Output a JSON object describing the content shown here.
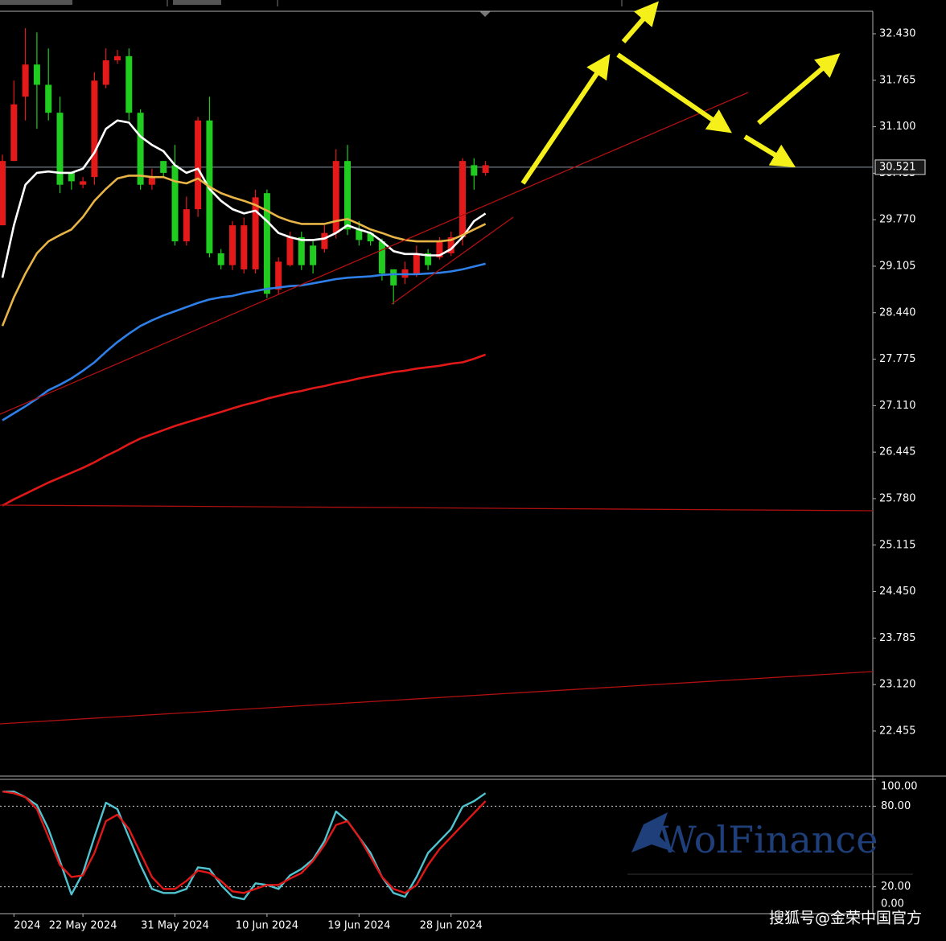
{
  "chart_data": [
    {
      "type": "candlestick",
      "categories": [
        null,
        "2024",
        null,
        null,
        null,
        null,
        null,
        "22 May 2024",
        null,
        null,
        null,
        null,
        null,
        null,
        null,
        "31 May 2024",
        null,
        null,
        null,
        null,
        null,
        null,
        null,
        "10 Jun 2024",
        null,
        null,
        null,
        null,
        null,
        null,
        null,
        "19 Jun 2024",
        null,
        null,
        null,
        null,
        null,
        null,
        null,
        "28 Jun 2024",
        null,
        null,
        null
      ],
      "open": [
        30.61,
        31.42,
        31.99,
        31.7,
        31.3,
        30.27,
        30.32,
        30.32,
        31.76,
        32.05,
        32.11,
        31.3,
        30.27,
        30.38,
        30.44,
        29.46,
        29.92,
        31.19,
        29.29,
        29.12,
        29.69,
        29.69,
        30.09,
        28.71,
        29.17,
        29.52,
        29.12,
        29.12,
        29.58,
        30.61,
        29.63,
        29.48,
        29.46,
        29.0,
        28.83,
        29.06,
        29.29,
        29.12,
        29.46,
        29.52,
        30.61,
        30.4,
        30.55
      ],
      "high": [
        30.7,
        31.76,
        32.51,
        32.45,
        32.22,
        31.53,
        30.44,
        30.38,
        31.88,
        32.22,
        32.2,
        32.22,
        31.35,
        30.5,
        30.61,
        30.84,
        30.1,
        31.24,
        31.53,
        29.35,
        29.75,
        29.8,
        30.2,
        30.2,
        29.23,
        29.6,
        29.6,
        29.46,
        29.69,
        30.78,
        30.84,
        29.75,
        29.6,
        29.5,
        29.06,
        29.17,
        29.4,
        29.35,
        29.52,
        29.6,
        30.65,
        30.65,
        30.61
      ],
      "low": [
        29.69,
        30.61,
        31.19,
        31.07,
        31.19,
        30.15,
        30.2,
        30.22,
        30.27,
        31.65,
        32.0,
        31.19,
        30.2,
        30.2,
        30.38,
        29.4,
        29.4,
        29.81,
        29.23,
        29.06,
        29.05,
        29.0,
        29.0,
        28.65,
        28.7,
        29.1,
        29.05,
        29.0,
        29.3,
        29.5,
        29.55,
        29.4,
        29.4,
        28.9,
        28.56,
        28.85,
        28.95,
        29.05,
        29.2,
        29.25,
        29.4,
        30.2,
        30.4
      ],
      "close": [
        29.69,
        30.61,
        31.53,
        31.99,
        31.7,
        31.3,
        30.44,
        30.27,
        30.38,
        31.7,
        32.05,
        32.11,
        31.3,
        30.27,
        30.61,
        30.55,
        29.46,
        29.92,
        31.19,
        29.29,
        29.12,
        29.06,
        29.06,
        30.15,
        28.77,
        29.12,
        29.52,
        29.4,
        29.35,
        29.58,
        30.61,
        29.63,
        29.58,
        29.46,
        29.06,
        28.94,
        29.0,
        29.29,
        29.23,
        29.29,
        29.52,
        30.55,
        30.44
      ],
      "up_color": "#1fcc1f",
      "down_color": "#e41a1a",
      "series": [
        {
          "color": "#ffffff",
          "values": [
            28.94,
            29.69,
            30.27,
            30.44,
            30.46,
            30.44,
            30.44,
            30.5,
            30.73,
            31.07,
            31.19,
            31.16,
            30.96,
            30.84,
            30.75,
            30.55,
            30.44,
            30.5,
            30.21,
            30.04,
            29.92,
            29.86,
            29.9,
            29.75,
            29.58,
            29.52,
            29.48,
            29.48,
            29.5,
            29.58,
            29.69,
            29.63,
            29.58,
            29.46,
            29.32,
            29.28,
            29.28,
            29.26,
            29.26,
            29.35,
            29.52,
            29.75,
            29.86
          ]
        },
        {
          "color": "#e8b445",
          "values": [
            28.25,
            28.66,
            29.0,
            29.29,
            29.46,
            29.55,
            29.63,
            29.81,
            30.04,
            30.21,
            30.36,
            30.4,
            30.4,
            30.38,
            30.38,
            30.32,
            30.29,
            30.36,
            30.24,
            30.15,
            30.09,
            30.04,
            29.98,
            29.9,
            29.81,
            29.75,
            29.71,
            29.71,
            29.71,
            29.75,
            29.78,
            29.71,
            29.63,
            29.58,
            29.52,
            29.48,
            29.46,
            29.46,
            29.46,
            29.48,
            29.55,
            29.63,
            29.71
          ]
        },
        {
          "color": "#2f7fe8",
          "values": [
            26.9,
            27.0,
            27.1,
            27.21,
            27.33,
            27.41,
            27.5,
            27.61,
            27.73,
            27.88,
            28.02,
            28.14,
            28.25,
            28.33,
            28.4,
            28.46,
            28.52,
            28.58,
            28.63,
            28.66,
            28.68,
            28.72,
            28.75,
            28.78,
            28.8,
            28.82,
            28.83,
            28.86,
            28.89,
            28.92,
            28.94,
            28.95,
            28.96,
            28.98,
            28.99,
            28.99,
            28.99,
            29.0,
            29.01,
            29.03,
            29.06,
            29.1,
            29.14
          ]
        },
        {
          "color": "#e01818",
          "values": [
            25.68,
            25.77,
            25.85,
            25.93,
            26.01,
            26.08,
            26.15,
            26.22,
            26.3,
            26.39,
            26.47,
            26.56,
            26.64,
            26.7,
            26.76,
            26.82,
            26.87,
            26.92,
            26.97,
            27.02,
            27.07,
            27.12,
            27.16,
            27.21,
            27.25,
            27.29,
            27.32,
            27.36,
            27.39,
            27.43,
            27.46,
            27.5,
            27.53,
            27.56,
            27.59,
            27.61,
            27.64,
            27.66,
            27.68,
            27.71,
            27.73,
            27.78,
            27.84
          ]
        }
      ],
      "last_price": 30.521,
      "ylim": [
        21.81,
        32.752
      ],
      "yticks": [
        {
          "value": 32.43,
          "label": "32.430"
        },
        {
          "value": 31.765,
          "label": "31.765"
        },
        {
          "value": 31.1,
          "label": "31.100"
        },
        {
          "value": 30.435,
          "label": "30.435"
        },
        {
          "value": 29.77,
          "label": "29.770"
        },
        {
          "value": 29.105,
          "label": "29.105"
        },
        {
          "value": 28.44,
          "label": "28.440"
        },
        {
          "value": 27.775,
          "label": "27.775"
        },
        {
          "value": 27.11,
          "label": "27.110"
        },
        {
          "value": 26.445,
          "label": "26.445"
        },
        {
          "value": 25.78,
          "label": "25.780"
        },
        {
          "value": 25.115,
          "label": "25.115"
        },
        {
          "value": 24.45,
          "label": "24.450"
        },
        {
          "value": 23.785,
          "label": "23.785"
        },
        {
          "value": 23.12,
          "label": "23.120"
        },
        {
          "value": 22.455,
          "label": "22.455"
        }
      ]
    },
    {
      "type": "line",
      "ylim": [
        0,
        100
      ],
      "yticks": [
        {
          "value": 100,
          "label": "100.00"
        },
        {
          "value": 80,
          "label": "80.00"
        },
        {
          "value": 20,
          "label": "20.00"
        },
        {
          "value": 0,
          "label": "0.00"
        }
      ],
      "levels": [
        80,
        20
      ],
      "series": [
        {
          "color": "#4fc4d0",
          "values": [
            90.9,
            90.9,
            86.7,
            80.8,
            63.0,
            39.2,
            14.3,
            30.3,
            57.0,
            82.6,
            77.8,
            57.0,
            36.2,
            18.4,
            15.4,
            15.4,
            18.4,
            34.5,
            33.3,
            21.4,
            12.5,
            10.7,
            22.6,
            21.4,
            18.4,
            28.5,
            33.3,
            40.4,
            54.1,
            76.1,
            68.9,
            57.0,
            45.2,
            27.3,
            15.4,
            12.5,
            27.3,
            45.2,
            54.1,
            63.0,
            79.6,
            83.8,
            89.7
          ]
        },
        {
          "color": "#e01818",
          "values": [
            90.9,
            89.7,
            86.7,
            77.8,
            57.0,
            36.2,
            27.3,
            28.5,
            45.2,
            68.9,
            73.7,
            63.0,
            45.2,
            27.3,
            18.4,
            18.4,
            24.4,
            32.1,
            30.3,
            24.4,
            16.6,
            15.4,
            18.4,
            21.4,
            21.4,
            26.1,
            30.3,
            39.2,
            51.1,
            66.0,
            68.9,
            57.0,
            42.2,
            27.3,
            18.4,
            15.4,
            21.4,
            36.2,
            48.1,
            57.0,
            66.0,
            74.9,
            83.8
          ]
        }
      ]
    }
  ],
  "watermarks": [
    "WolFinance",
    "搜狐号@金荣中国官方"
  ]
}
